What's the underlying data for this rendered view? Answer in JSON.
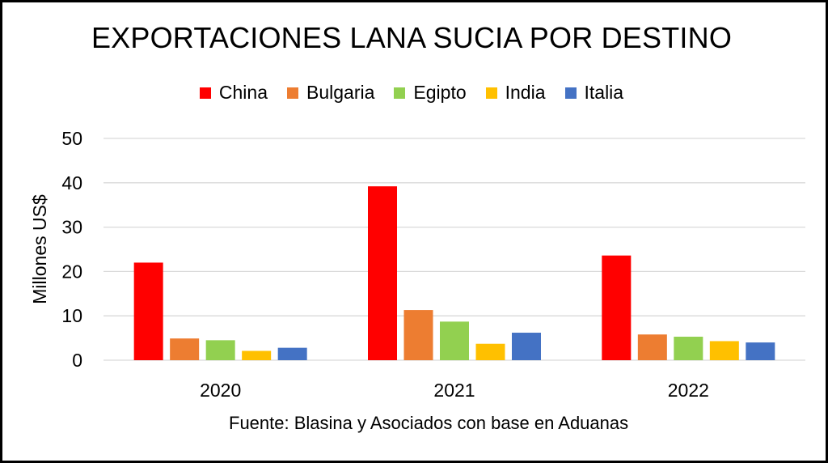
{
  "chart_data": {
    "type": "bar",
    "title": "EXPORTACIONES LANA SUCIA POR DESTINO",
    "ylabel": "Millones US$",
    "xlabel": "",
    "ylim": [
      0,
      50
    ],
    "yticks": [
      0,
      10,
      20,
      30,
      40,
      50
    ],
    "grid": true,
    "legend_position": "top",
    "categories": [
      "2020",
      "2021",
      "2022"
    ],
    "series": [
      {
        "name": "China",
        "color": "#ff0000",
        "values": [
          22.0,
          39.2,
          23.6
        ]
      },
      {
        "name": "Bulgaria",
        "color": "#ed7d31",
        "values": [
          4.9,
          11.3,
          5.8
        ]
      },
      {
        "name": "Egipto",
        "color": "#92d050",
        "values": [
          4.5,
          8.7,
          5.3
        ]
      },
      {
        "name": "India",
        "color": "#ffc000",
        "values": [
          2.1,
          3.7,
          4.3
        ]
      },
      {
        "name": "Italia",
        "color": "#4472c4",
        "values": [
          2.8,
          6.2,
          4.0
        ]
      }
    ],
    "source": "Fuente: Blasina y Asociados con base en Aduanas"
  }
}
